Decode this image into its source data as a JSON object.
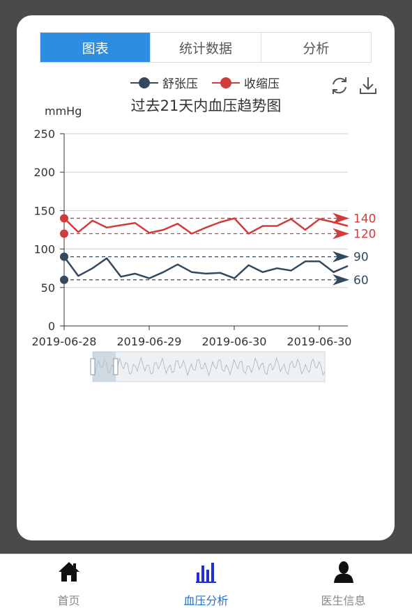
{
  "tabs": [
    {
      "label": "图表",
      "active": true
    },
    {
      "label": "统计数据",
      "active": false
    },
    {
      "label": "分析",
      "active": false
    }
  ],
  "toolbar": {
    "refresh_icon": "refresh-icon",
    "download_icon": "download-icon"
  },
  "colors": {
    "diastolic": "#34495e",
    "systolic": "#d13b3b",
    "accent": "#2d8de0",
    "nav_active": "#1f6fe0"
  },
  "chart_data": {
    "type": "line",
    "title": "过去21天内血压趋势图",
    "ylabel": "mmHg",
    "ylim": [
      0,
      250
    ],
    "yticks": [
      "0",
      "50",
      "100",
      "150",
      "200",
      "250"
    ],
    "x_tick_labels": [
      "2019-06-28",
      "2019-06-29",
      "2019-06-30",
      "2019-06-30"
    ],
    "grid": true,
    "legend_position": "top-center",
    "series": [
      {
        "name": "舒张压",
        "color": "#34495e",
        "values": [
          90,
          65,
          75,
          88,
          64,
          68,
          62,
          70,
          80,
          70,
          68,
          69,
          62,
          79,
          70,
          75,
          72,
          84,
          84,
          70,
          78
        ],
        "reference_lines": [
          90,
          60
        ]
      },
      {
        "name": "收缩压",
        "color": "#d13b3b",
        "values": [
          140,
          122,
          137,
          128,
          131,
          134,
          121,
          125,
          133,
          120,
          128,
          135,
          140,
          120,
          130,
          130,
          139,
          125,
          139,
          135,
          130
        ],
        "reference_lines": [
          140,
          120
        ]
      }
    ],
    "reference_labels": [
      "140",
      "120",
      "90",
      "60"
    ]
  },
  "nav": [
    {
      "label": "首页",
      "icon": "home-icon",
      "active": false
    },
    {
      "label": "血压分析",
      "icon": "bar-chart-icon",
      "active": true
    },
    {
      "label": "医生信息",
      "icon": "user-icon",
      "active": false
    }
  ]
}
